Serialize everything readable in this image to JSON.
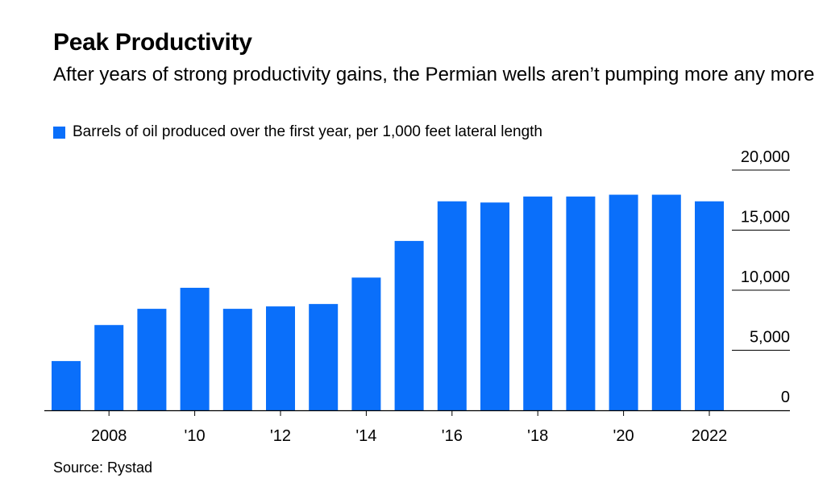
{
  "chart_data": {
    "type": "bar",
    "title": "Peak Productivity",
    "subtitle": "After years of strong productivity gains, the Permian wells aren’t pumping more any more",
    "legend": [
      "Barrels of oil produced over the first year, per 1,000 feet lateral length"
    ],
    "legend_placement": "top-left",
    "x": [
      2007,
      2008,
      2009,
      2010,
      2011,
      2012,
      2013,
      2014,
      2015,
      2016,
      2017,
      2018,
      2019,
      2020,
      2021,
      2022
    ],
    "series": [
      {
        "name": "Barrels of oil produced over the first year, per 1,000 feet lateral length",
        "values": [
          4100,
          7100,
          8450,
          10200,
          8450,
          8650,
          8850,
          11050,
          14100,
          17400,
          17300,
          17800,
          17800,
          17950,
          17950,
          17400
        ]
      }
    ],
    "x_ticks": [
      {
        "value": 2008,
        "label": "2008"
      },
      {
        "value": 2010,
        "label": "'10"
      },
      {
        "value": 2012,
        "label": "'12"
      },
      {
        "value": 2014,
        "label": "'14"
      },
      {
        "value": 2016,
        "label": "'16"
      },
      {
        "value": 2018,
        "label": "'18"
      },
      {
        "value": 2020,
        "label": "'20"
      },
      {
        "value": 2022,
        "label": "2022"
      }
    ],
    "y_ticks": [
      {
        "value": 0,
        "label": "0"
      },
      {
        "value": 5000,
        "label": "5,000"
      },
      {
        "value": 10000,
        "label": "10,000"
      },
      {
        "value": 15000,
        "label": "15,000"
      },
      {
        "value": 20000,
        "label": "20,000"
      }
    ],
    "ylim": [
      0,
      20000
    ],
    "y_axis_side": "right",
    "grid": false,
    "bar_color": "#0a6ffa",
    "source": "Source: Rystad"
  }
}
